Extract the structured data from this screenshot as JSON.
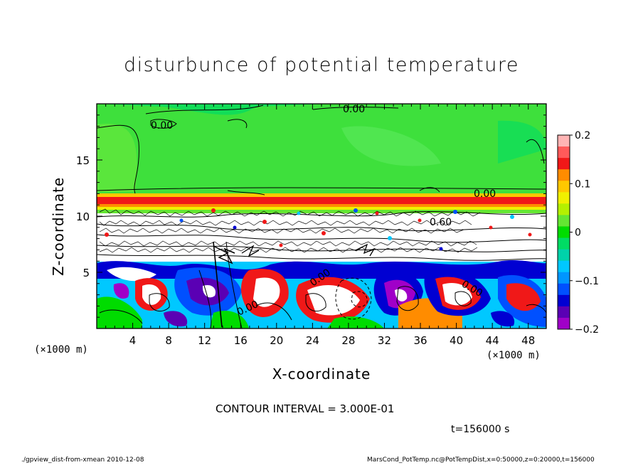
{
  "chart_data": {
    "type": "heatmap",
    "title": "disturbunce of potential temperature",
    "xlabel": "X-coordinate",
    "ylabel": "Z-coordinate",
    "x_unit": "(×1000 m)",
    "y_unit": "(×1000 m)",
    "x_ticks": [
      4,
      8,
      12,
      16,
      20,
      24,
      28,
      32,
      36,
      40,
      44,
      48
    ],
    "y_ticks": [
      5,
      10,
      15
    ],
    "xlim": [
      0,
      50
    ],
    "ylim": [
      0,
      20
    ],
    "colorbar": {
      "range": [
        -0.2,
        0.2
      ],
      "tick_labels": [
        "0.2",
        "0.1",
        "0",
        "−0.1",
        "−0.2"
      ],
      "tick_values": [
        0.2,
        0.1,
        0,
        -0.1,
        -0.2
      ],
      "colors": [
        "#ffb4b4",
        "#ff5a5a",
        "#f01818",
        "#ff8c00",
        "#ffc800",
        "#f0f000",
        "#b4f000",
        "#64e632",
        "#00dc00",
        "#00dc64",
        "#00d2aa",
        "#00c8ff",
        "#0096ff",
        "#0050ff",
        "#0000d2",
        "#5a00b4",
        "#a000c8"
      ]
    },
    "contour_labels": [
      "0.00",
      "0.00",
      "0.00",
      "0.60",
      "0.00",
      "0.00",
      "0.00"
    ],
    "contour_interval": "CONTOUR INTERVAL = 3.000E-01",
    "time": "t=156000 s"
  },
  "footer": {
    "left": "./gpview_dist-from-xmean  2010-12-08",
    "right": "MarsCond_PotTemp.nc@PotTempDist,x=0:50000,z=0:20000,t=156000"
  },
  "colors": {
    "upper_green": "#3ee03c",
    "band_red": "#f01818",
    "white": "#ffffff"
  }
}
